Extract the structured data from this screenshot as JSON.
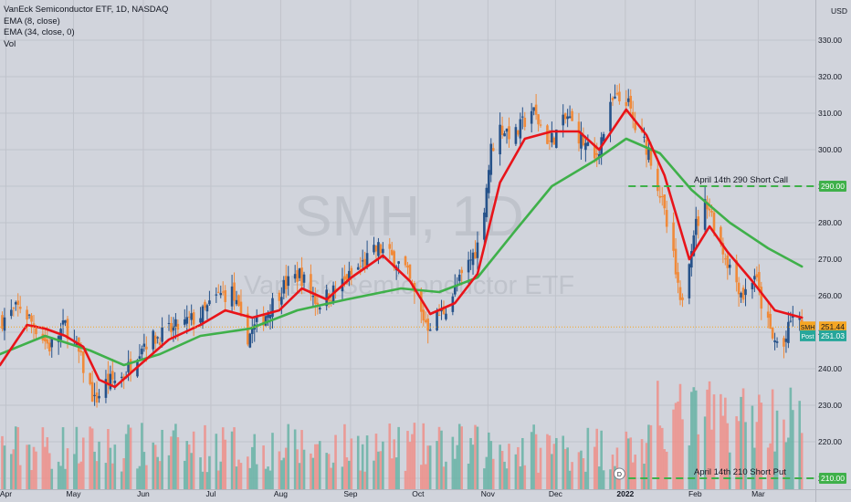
{
  "header": {
    "symbol_line": "VanEck Semiconductor ETF, 1D, NASDAQ",
    "indicators": [
      "EMA (8, close)",
      "EMA (34, close, 0)",
      "Vol"
    ]
  },
  "watermark": {
    "symbol": "SMH, 1D",
    "name": "VanEck Semiconductor ETF"
  },
  "colors": {
    "background": "#d1d4dc",
    "grid": "#c0c3cb",
    "up": "#26528a",
    "down": "#f08a3a",
    "ema8": "#e8141a",
    "ema34": "#3fb04a",
    "volume_up": "#68b3a6",
    "volume_down": "#ef8f8a",
    "level_line": "#3fb04a",
    "price_label": "#f5a623",
    "post_label": "#26a69a"
  },
  "chart_data": {
    "type": "candlestick",
    "title": "VanEck Semiconductor ETF, 1D, NASDAQ",
    "currency": "USD",
    "y_ticks": [
      210,
      220,
      230,
      240,
      250,
      260,
      270,
      280,
      290,
      300,
      310,
      320,
      330
    ],
    "ylim": [
      205.6,
      336.6
    ],
    "x_ticks": [
      "Apr",
      "May",
      "Jun",
      "Jul",
      "Aug",
      "Sep",
      "Oct",
      "Nov",
      "Dec",
      "2022",
      "Feb",
      "Mar"
    ],
    "xlim": [
      "2021-03-31",
      "2022-03-28"
    ],
    "grid": true,
    "series": [
      {
        "name": "EMA (8, close)",
        "kind": "line",
        "color": "#e8141a"
      },
      {
        "name": "EMA (34, close, 0)",
        "kind": "line",
        "color": "#3fb04a"
      },
      {
        "name": "Vol",
        "kind": "volume_bars"
      }
    ],
    "last_price": 251.44,
    "post_price": 251.03,
    "annotations": [
      {
        "text": "April 14th 290 Short Call",
        "price": 290,
        "price_label": "290.00",
        "x_from": "2022-01-04"
      },
      {
        "text": "April 14th 210 Short Put",
        "price": 210,
        "price_label": "210.00",
        "x_from": "2022-01-04"
      }
    ],
    "badges": [
      {
        "label": "SMH",
        "value": "251.44"
      },
      {
        "label": "Post",
        "value": "251.03"
      }
    ],
    "event_marker": {
      "date": "2021-12-31",
      "glyph": "D"
    },
    "price_path": [
      [
        "2021-03-31",
        253
      ],
      [
        "2021-04-09",
        257
      ],
      [
        "2021-04-15",
        252
      ],
      [
        "2021-04-22",
        246
      ],
      [
        "2021-04-29",
        252
      ],
      [
        "2021-05-05",
        244
      ],
      [
        "2021-05-12",
        231
      ],
      [
        "2021-05-17",
        236
      ],
      [
        "2021-05-25",
        238
      ],
      [
        "2021-06-02",
        247
      ],
      [
        "2021-06-10",
        249
      ],
      [
        "2021-06-20",
        252
      ],
      [
        "2021-06-29",
        255
      ],
      [
        "2021-07-06",
        260
      ],
      [
        "2021-07-12",
        261
      ],
      [
        "2021-07-16",
        253
      ],
      [
        "2021-07-19",
        249
      ],
      [
        "2021-07-26",
        254
      ],
      [
        "2021-08-03",
        262
      ],
      [
        "2021-08-11",
        266
      ],
      [
        "2021-08-19",
        258
      ],
      [
        "2021-08-28",
        262
      ],
      [
        "2021-09-07",
        268
      ],
      [
        "2021-09-15",
        273
      ],
      [
        "2021-09-22",
        270
      ],
      [
        "2021-09-27",
        267
      ],
      [
        "2021-10-04",
        255
      ],
      [
        "2021-10-07",
        252
      ],
      [
        "2021-10-14",
        256
      ],
      [
        "2021-10-22",
        265
      ],
      [
        "2021-10-30",
        275
      ],
      [
        "2021-11-04",
        300
      ],
      [
        "2021-11-08",
        306
      ],
      [
        "2021-11-15",
        304
      ],
      [
        "2021-11-22",
        311
      ],
      [
        "2021-11-30",
        302
      ],
      [
        "2021-12-08",
        309
      ],
      [
        "2021-12-14",
        303
      ],
      [
        "2021-12-20",
        297
      ],
      [
        "2021-12-28",
        313
      ],
      [
        "2022-01-03",
        314
      ],
      [
        "2022-01-07",
        306
      ],
      [
        "2022-01-13",
        300
      ],
      [
        "2022-01-18",
        288
      ],
      [
        "2022-01-24",
        270
      ],
      [
        "2022-01-27",
        257
      ],
      [
        "2022-02-02",
        278
      ],
      [
        "2022-02-08",
        286
      ],
      [
        "2022-02-14",
        274
      ],
      [
        "2022-02-18",
        268
      ],
      [
        "2022-02-24",
        260
      ],
      [
        "2022-03-01",
        266
      ],
      [
        "2022-03-04",
        258
      ],
      [
        "2022-03-09",
        248
      ],
      [
        "2022-03-14",
        246
      ],
      [
        "2022-03-18",
        255
      ],
      [
        "2022-03-22",
        251
      ]
    ],
    "ema8_path": [
      [
        "2021-03-31",
        241
      ],
      [
        "2021-04-12",
        252
      ],
      [
        "2021-04-20",
        251
      ],
      [
        "2021-04-29",
        249
      ],
      [
        "2021-05-07",
        246
      ],
      [
        "2021-05-14",
        237
      ],
      [
        "2021-05-21",
        235
      ],
      [
        "2021-06-01",
        241
      ],
      [
        "2021-06-14",
        248
      ],
      [
        "2021-06-28",
        252
      ],
      [
        "2021-07-09",
        256
      ],
      [
        "2021-07-21",
        254
      ],
      [
        "2021-08-02",
        256
      ],
      [
        "2021-08-12",
        262
      ],
      [
        "2021-08-23",
        259
      ],
      [
        "2021-09-03",
        265
      ],
      [
        "2021-09-17",
        271
      ],
      [
        "2021-09-29",
        264
      ],
      [
        "2021-10-08",
        255
      ],
      [
        "2021-10-19",
        258
      ],
      [
        "2021-10-29",
        266
      ],
      [
        "2021-11-08",
        291
      ],
      [
        "2021-11-19",
        303
      ],
      [
        "2021-12-01",
        305
      ],
      [
        "2021-12-13",
        305
      ],
      [
        "2021-12-22",
        300
      ],
      [
        "2022-01-03",
        311
      ],
      [
        "2022-01-12",
        304
      ],
      [
        "2022-01-20",
        293
      ],
      [
        "2022-01-31",
        270
      ],
      [
        "2022-02-09",
        279
      ],
      [
        "2022-02-17",
        272
      ],
      [
        "2022-02-28",
        264
      ],
      [
        "2022-03-10",
        256
      ],
      [
        "2022-03-22",
        254
      ]
    ],
    "ema34_path": [
      [
        "2021-03-31",
        244
      ],
      [
        "2021-04-20",
        249
      ],
      [
        "2021-05-10",
        245
      ],
      [
        "2021-05-25",
        241
      ],
      [
        "2021-06-10",
        244
      ],
      [
        "2021-06-28",
        249
      ],
      [
        "2021-07-20",
        251
      ],
      [
        "2021-08-10",
        256
      ],
      [
        "2021-09-01",
        259
      ],
      [
        "2021-09-25",
        262
      ],
      [
        "2021-10-12",
        261
      ],
      [
        "2021-10-29",
        265
      ],
      [
        "2021-11-15",
        278
      ],
      [
        "2021-12-01",
        290
      ],
      [
        "2021-12-20",
        297
      ],
      [
        "2022-01-03",
        303
      ],
      [
        "2022-01-18",
        299
      ],
      [
        "2022-02-01",
        289
      ],
      [
        "2022-02-18",
        280
      ],
      [
        "2022-03-07",
        273
      ],
      [
        "2022-03-22",
        268
      ]
    ],
    "volume_max_share": 0.24
  }
}
